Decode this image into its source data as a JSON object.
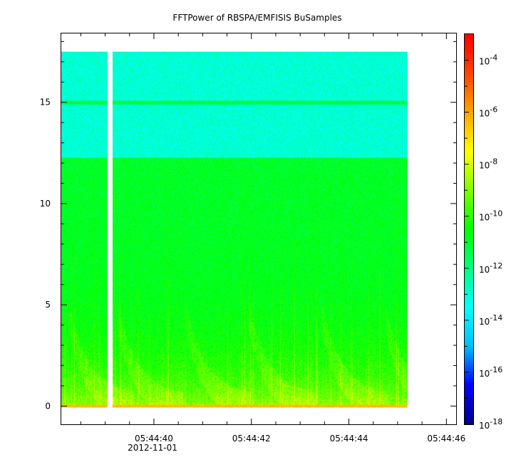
{
  "chart_data": {
    "type": "heatmap",
    "title": "FFTPower of RBSPA/EMFISIS  BuSamples",
    "x": {
      "unit": "time",
      "date_label": "2012-11-01",
      "range": [
        "05:44:38.1",
        "05:44:46.2"
      ],
      "data_end": "05:44:45.2",
      "major_ticks": [
        "05:44:40",
        "05:44:42",
        "05:44:44",
        "05:44:46"
      ],
      "data_gap": [
        "05:44:39.05",
        "05:44:39.15"
      ]
    },
    "y": {
      "range": [
        -0.9,
        18.4
      ],
      "ticks": [
        0,
        5,
        10,
        15
      ],
      "data_top": 17.5
    },
    "z": {
      "scale": "log",
      "range": [
        1e-18,
        0.001
      ],
      "colorbar_ticks": [
        {
          "value": 1e-18,
          "base": "10",
          "exp": "-18"
        },
        {
          "value": 1e-16,
          "base": "10",
          "exp": "-16"
        },
        {
          "value": 1e-14,
          "base": "10",
          "exp": "-14"
        },
        {
          "value": 1e-12,
          "base": "10",
          "exp": "-12"
        },
        {
          "value": 1e-10,
          "base": "10",
          "exp": "-10"
        },
        {
          "value": 1e-08,
          "base": "10",
          "exp": "-8"
        },
        {
          "value": 1e-06,
          "base": "10",
          "exp": "-6"
        },
        {
          "value": 0.0001,
          "base": "10",
          "exp": "-4"
        }
      ],
      "colormap": [
        "#00008b",
        "#0000ff",
        "#00bfff",
        "#00ffff",
        "#00ff7f",
        "#00ff00",
        "#7fff00",
        "#ffff00",
        "#ffa500",
        "#ff4500",
        "#ff0000"
      ]
    },
    "features": {
      "background_level_upper": 1e-13,
      "background_level_lower": 1e-11,
      "band_edge_y": 12.3,
      "line_y": 15.0,
      "line_level": 1e-11
    },
    "grid": false,
    "legend": "colorbar-right"
  }
}
